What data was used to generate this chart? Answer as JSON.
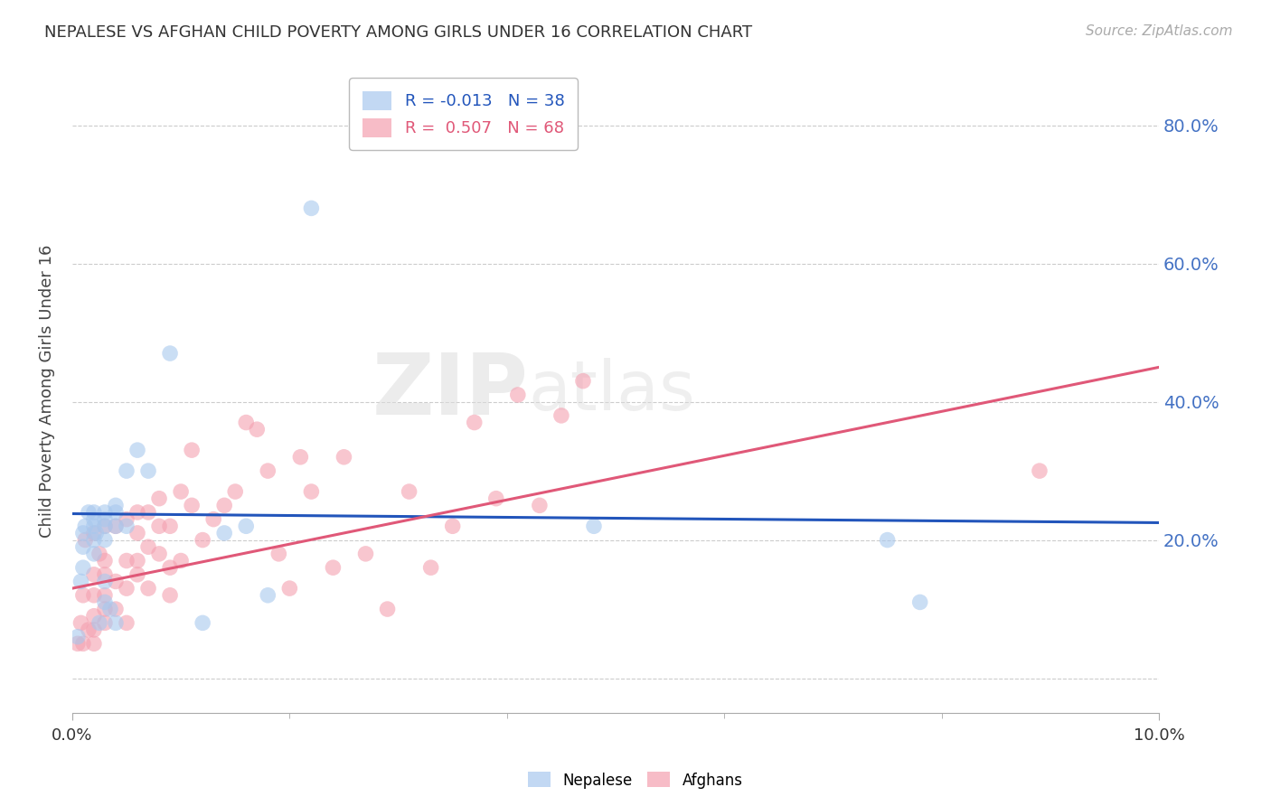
{
  "title": "NEPALESE VS AFGHAN CHILD POVERTY AMONG GIRLS UNDER 16 CORRELATION CHART",
  "source": "Source: ZipAtlas.com",
  "ylabel": "Child Poverty Among Girls Under 16",
  "xlim": [
    0,
    0.1
  ],
  "ylim": [
    -0.05,
    0.88
  ],
  "ytick_positions": [
    0.0,
    0.2,
    0.4,
    0.6,
    0.8
  ],
  "ytick_labels": [
    "",
    "20.0%",
    "40.0%",
    "60.0%",
    "80.0%"
  ],
  "xtick_positions": [
    0.0,
    0.1
  ],
  "xtick_labels": [
    "0.0%",
    "10.0%"
  ],
  "xtick_minor_positions": [
    0.02,
    0.04,
    0.06,
    0.08
  ],
  "nepalese_R": -0.013,
  "nepalese_N": 38,
  "afghan_R": 0.507,
  "afghan_N": 68,
  "nepalese_color": "#a8c8ee",
  "afghan_color": "#f4a0b0",
  "nepalese_line_color": "#2255bb",
  "afghan_line_color": "#e05878",
  "watermark_zip": "ZIP",
  "watermark_atlas": "atlas",
  "nepalese_x": [
    0.0005,
    0.0008,
    0.001,
    0.001,
    0.001,
    0.0012,
    0.0015,
    0.002,
    0.002,
    0.002,
    0.002,
    0.002,
    0.0022,
    0.0025,
    0.003,
    0.003,
    0.003,
    0.003,
    0.003,
    0.003,
    0.0035,
    0.004,
    0.004,
    0.004,
    0.004,
    0.005,
    0.005,
    0.006,
    0.007,
    0.009,
    0.012,
    0.014,
    0.016,
    0.018,
    0.022,
    0.048,
    0.075,
    0.078
  ],
  "nepalese_y": [
    0.06,
    0.14,
    0.16,
    0.19,
    0.21,
    0.22,
    0.24,
    0.18,
    0.2,
    0.22,
    0.23,
    0.24,
    0.21,
    0.08,
    0.11,
    0.14,
    0.2,
    0.22,
    0.23,
    0.24,
    0.1,
    0.08,
    0.22,
    0.24,
    0.25,
    0.22,
    0.3,
    0.33,
    0.3,
    0.47,
    0.08,
    0.21,
    0.22,
    0.12,
    0.68,
    0.22,
    0.2,
    0.11
  ],
  "afghan_x": [
    0.0005,
    0.0008,
    0.001,
    0.001,
    0.0012,
    0.0015,
    0.002,
    0.002,
    0.002,
    0.002,
    0.002,
    0.002,
    0.0025,
    0.003,
    0.003,
    0.003,
    0.003,
    0.003,
    0.003,
    0.004,
    0.004,
    0.004,
    0.005,
    0.005,
    0.005,
    0.005,
    0.006,
    0.006,
    0.006,
    0.006,
    0.007,
    0.007,
    0.007,
    0.008,
    0.008,
    0.008,
    0.009,
    0.009,
    0.009,
    0.01,
    0.01,
    0.011,
    0.011,
    0.012,
    0.013,
    0.014,
    0.015,
    0.016,
    0.017,
    0.018,
    0.019,
    0.02,
    0.021,
    0.022,
    0.024,
    0.025,
    0.027,
    0.029,
    0.031,
    0.033,
    0.035,
    0.037,
    0.039,
    0.041,
    0.043,
    0.045,
    0.047,
    0.089
  ],
  "afghan_y": [
    0.05,
    0.08,
    0.05,
    0.12,
    0.2,
    0.07,
    0.05,
    0.07,
    0.09,
    0.12,
    0.15,
    0.21,
    0.18,
    0.08,
    0.1,
    0.12,
    0.15,
    0.17,
    0.22,
    0.1,
    0.14,
    0.22,
    0.08,
    0.13,
    0.17,
    0.23,
    0.15,
    0.17,
    0.21,
    0.24,
    0.13,
    0.19,
    0.24,
    0.18,
    0.22,
    0.26,
    0.12,
    0.16,
    0.22,
    0.17,
    0.27,
    0.25,
    0.33,
    0.2,
    0.23,
    0.25,
    0.27,
    0.37,
    0.36,
    0.3,
    0.18,
    0.13,
    0.32,
    0.27,
    0.16,
    0.32,
    0.18,
    0.1,
    0.27,
    0.16,
    0.22,
    0.37,
    0.26,
    0.41,
    0.25,
    0.38,
    0.43,
    0.3
  ],
  "nepalese_line": {
    "x0": 0.0,
    "x1": 0.1,
    "y0": 0.238,
    "y1": 0.225
  },
  "afghan_line": {
    "x0": 0.0,
    "x1": 0.1,
    "y0": 0.13,
    "y1": 0.45
  },
  "grid_color": "#cccccc",
  "background_color": "#ffffff"
}
